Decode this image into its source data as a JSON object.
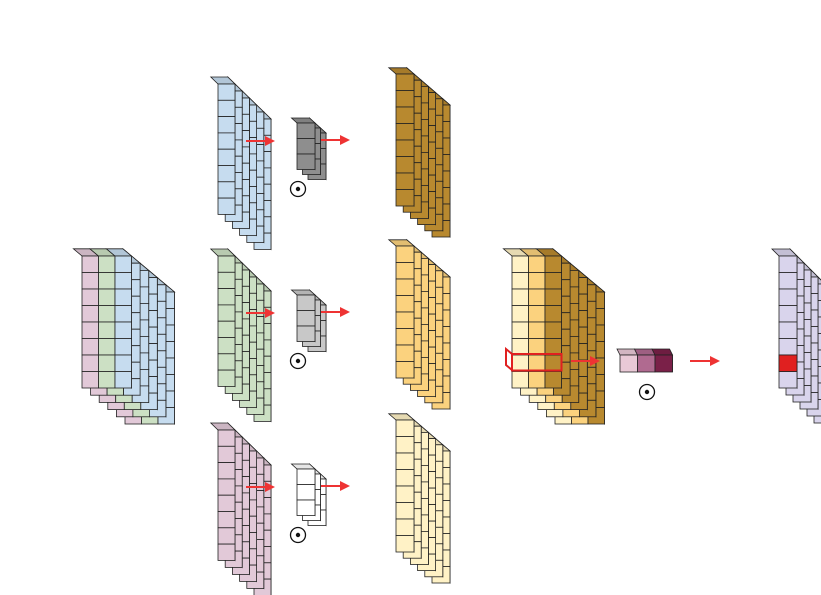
{
  "operator_symbol": "⊙",
  "colors": {
    "grid_line": "#222222",
    "arrow": "#ee3333",
    "highlight": "#e02020",
    "input_channels": [
      "#e2c9d8",
      "#cce0c4",
      "#c6dcef"
    ],
    "branch_inputs": [
      "#c6dcef",
      "#cce0c4",
      "#e2c9d8"
    ],
    "kernels": [
      "#8e8e8e",
      "#c8c8c8",
      "#ffffff"
    ],
    "branch_outputs": [
      "#b8892f",
      "#fbd27e",
      "#fff2c6"
    ],
    "merged_channels": [
      "#fff2c6",
      "#fbd27e",
      "#b8892f"
    ],
    "weight_channels": [
      "#e9c9d6",
      "#b06a90",
      "#7a2048"
    ],
    "final_output": "#d9d4ec"
  }
}
